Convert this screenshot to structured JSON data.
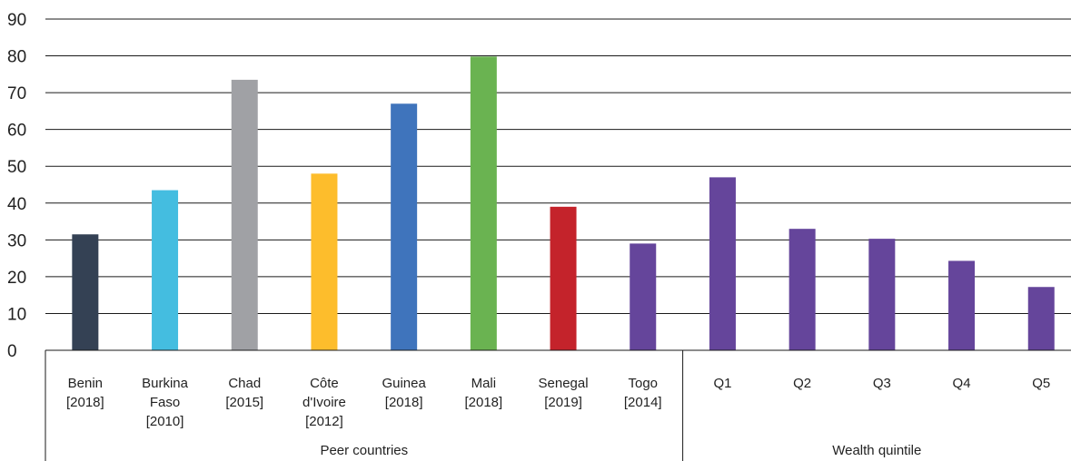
{
  "chart_data": {
    "type": "bar",
    "title": "",
    "xlabel": "",
    "ylabel": "",
    "ylim": [
      0,
      90
    ],
    "yticks": [
      "0",
      "10",
      "20",
      "30",
      "40",
      "50",
      "60",
      "70",
      "80",
      "90"
    ],
    "grid": true,
    "categories": [
      [
        "Benin",
        "[2018]"
      ],
      [
        "Burkina",
        "Faso",
        "[2010]"
      ],
      [
        "Chad",
        "[2015]"
      ],
      [
        "Côte",
        "d'Ivoire",
        "[2012]"
      ],
      [
        "Guinea",
        "[2018]"
      ],
      [
        "Mali",
        "[2018]"
      ],
      [
        "Senegal",
        "[2019]"
      ],
      [
        "Togo",
        "[2014]"
      ],
      [
        "Q1"
      ],
      [
        "Q2"
      ],
      [
        "Q3"
      ],
      [
        "Q4"
      ],
      [
        "Q5"
      ]
    ],
    "values": [
      31.5,
      43.5,
      73.5,
      48,
      67,
      79.8,
      39,
      29,
      47,
      33,
      30.3,
      24.3,
      17.2
    ],
    "colors": [
      "#344154",
      "#44bde0",
      "#a0a1a5",
      "#fdbd2c",
      "#3f74bc",
      "#6ab351",
      "#c4232b",
      "#65459b",
      "#65459b",
      "#65459b",
      "#65459b",
      "#65459b",
      "#65459b"
    ],
    "groups": [
      {
        "label": "Peer countries"
      },
      {
        "label": "Wealth quintile"
      }
    ]
  }
}
